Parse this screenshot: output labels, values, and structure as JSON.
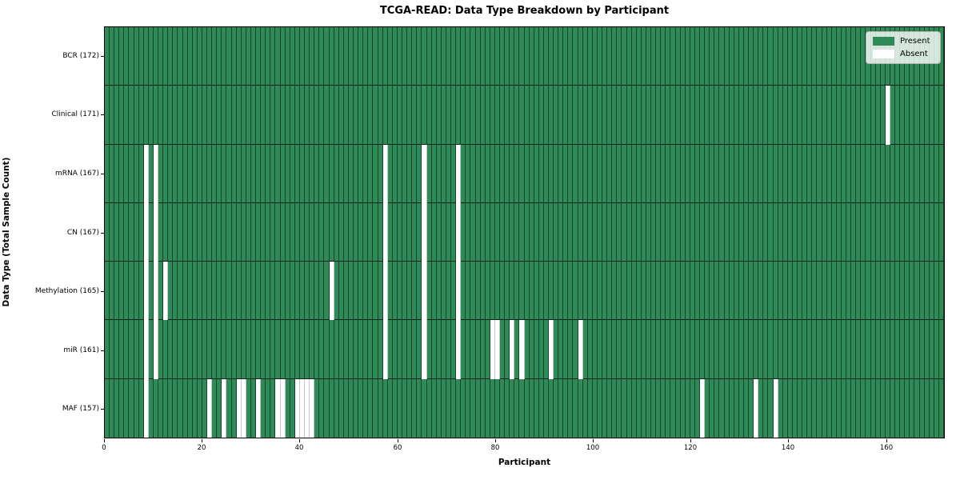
{
  "title": "TCGA-READ: Data Type Breakdown by Participant",
  "chart_data": {
    "type": "heatmap",
    "title": "TCGA-READ: Data Type Breakdown by Participant",
    "xlabel": "Participant",
    "ylabel": "Data Type (Total Sample Count)",
    "x_range": [
      0,
      172
    ],
    "x_ticks": [
      0,
      20,
      40,
      60,
      80,
      100,
      120,
      140,
      160
    ],
    "n_participants": 172,
    "grid": "cell-edges-on",
    "legend_position": "upper-right",
    "legend": [
      {
        "label": "Present",
        "color": "#2e8b57"
      },
      {
        "label": "Absent",
        "color": "#ffffff"
      }
    ],
    "colors": {
      "present": "#2e8b57",
      "absent": "#ffffff",
      "cell_edge": "rgba(0,0,0,0.5)"
    },
    "rows": [
      {
        "label": "BCR (172)",
        "data_type": "BCR",
        "present_count": 172,
        "absent_participants": []
      },
      {
        "label": "Clinical (171)",
        "data_type": "Clinical",
        "present_count": 171,
        "absent_participants": [
          160
        ]
      },
      {
        "label": "mRNA (167)",
        "data_type": "mRNA",
        "present_count": 167,
        "absent_participants": [
          8,
          10,
          57,
          65,
          72
        ]
      },
      {
        "label": "CN (167)",
        "data_type": "CN",
        "present_count": 167,
        "absent_participants": [
          8,
          10,
          57,
          65,
          72
        ]
      },
      {
        "label": "Methylation (165)",
        "data_type": "Methylation",
        "present_count": 165,
        "absent_participants": [
          8,
          10,
          12,
          46,
          57,
          65,
          72
        ]
      },
      {
        "label": "miR (161)",
        "data_type": "miR",
        "present_count": 161,
        "absent_participants": [
          8,
          10,
          57,
          65,
          72,
          79,
          80,
          83,
          85,
          91,
          97
        ]
      },
      {
        "label": "MAF (157)",
        "data_type": "MAF",
        "present_count": 157,
        "absent_participants": [
          8,
          21,
          24,
          27,
          28,
          31,
          35,
          36,
          39,
          40,
          41,
          42,
          122,
          133,
          137
        ]
      }
    ]
  }
}
